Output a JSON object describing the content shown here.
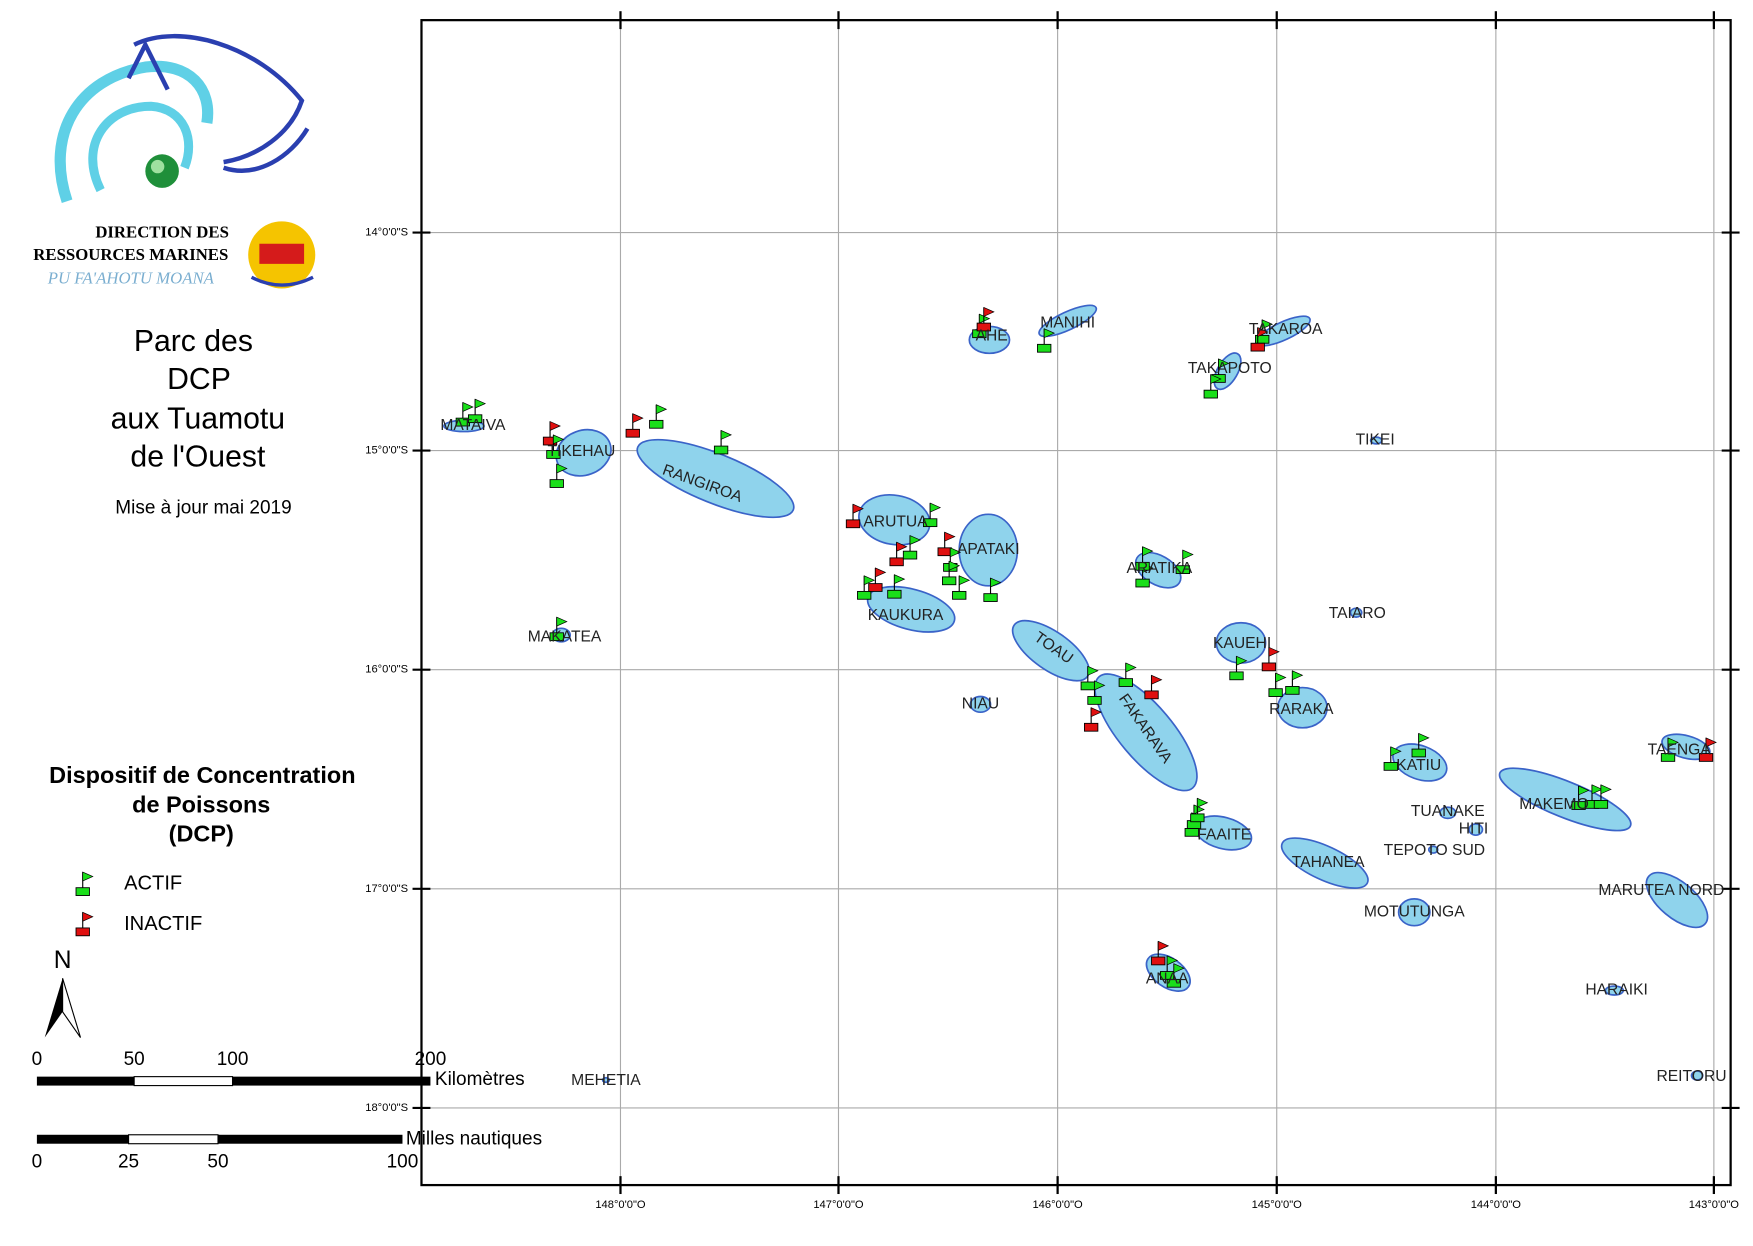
{
  "logo": {
    "line1": "DIRECTION DES",
    "line2": "RESSOURCES MARINES",
    "line3": "PU FA'AHOTU MOANA"
  },
  "title": [
    "Parc des",
    "DCP",
    "aux Tuamotu",
    "de l'Ouest"
  ],
  "update": "Mise à jour mai 2019",
  "legend": {
    "title": [
      "Dispositif de Concentration",
      "de Poissons",
      "(DCP)"
    ],
    "items": [
      "ACTIF",
      "INACTIF"
    ],
    "north": "N"
  },
  "scale": {
    "km_labels": [
      "0",
      "50",
      "100",
      "200"
    ],
    "km_unit": "Kilomètres",
    "nm_labels": [
      "0",
      "25",
      "50",
      "100"
    ],
    "nm_unit": "Milles nautiques"
  },
  "map": {
    "lon_labels": [
      "148°0'0\"O",
      "147°0'0\"O",
      "146°0'0\"O",
      "145°0'0\"O",
      "144°0'0\"O",
      "143°0'0\"O"
    ],
    "lat_labels": [
      "14°0'0\"S",
      "15°0'0\"S",
      "16°0'0\"S",
      "17°0'0\"S",
      "18°0'0\"S"
    ],
    "islands": [
      "MATAIVA",
      "TIKEHAU",
      "RANGIROA",
      "MAKATEA",
      "AHE",
      "MANIHI",
      "TAKAROA",
      "TAKAPOTO",
      "TIKEI",
      "ARUTUA",
      "APATAKI",
      "KAUKURA",
      "TOAU",
      "NIAU",
      "ARATIKA",
      "TAIARO",
      "KAUEHI",
      "FAKARAVA",
      "RARAKA",
      "KATIU",
      "TAENGA",
      "MAKEMO",
      "TUANAKE",
      "HITI",
      "FAAITE",
      "TAHANEA",
      "TEPOTO SUD",
      "MARUTEA NORD",
      "MOTUTUNGA",
      "ANAA",
      "HARAIKI",
      "REITORU",
      "MEHETIA"
    ]
  }
}
